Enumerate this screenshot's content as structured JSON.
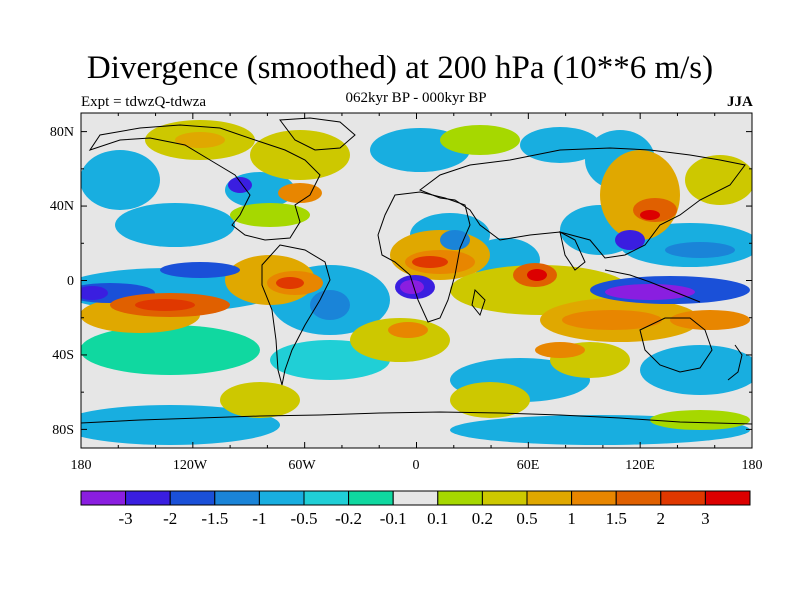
{
  "header": {
    "title": "Divergence (smoothed) at 200 hPa (10**6 m/s)",
    "subtitle": "062kyr BP - 000kyr BP",
    "experiment": "Expt = tdwzQ-tdwza",
    "season": "JJA"
  },
  "map": {
    "lat_ticks": [
      "80N",
      "40N",
      "0",
      "40S",
      "80S"
    ],
    "lon_ticks": [
      "180",
      "120W",
      "60W",
      "0",
      "60E",
      "120E",
      "180"
    ],
    "lat_range": [
      -90,
      90
    ],
    "lon_range": [
      -180,
      180
    ],
    "projection": "cylindrical-equidistant",
    "coastlines": true,
    "neutral_color": "#e6e6e6"
  },
  "colorbar": {
    "labels": [
      "-3",
      "-2",
      "-1.5",
      "-1",
      "-0.5",
      "-0.2",
      "-0.1",
      "0.1",
      "0.2",
      "0.5",
      "1",
      "1.5",
      "2",
      "3"
    ],
    "colors": [
      "#8a1ee0",
      "#3a1ee0",
      "#1a50d8",
      "#1a84d8",
      "#18aee0",
      "#20cfd6",
      "#10d8a0",
      "#e6e6e6",
      "#a6d800",
      "#cdc800",
      "#e0a800",
      "#e88600",
      "#e06000",
      "#e03800",
      "#dc0000"
    ]
  }
}
